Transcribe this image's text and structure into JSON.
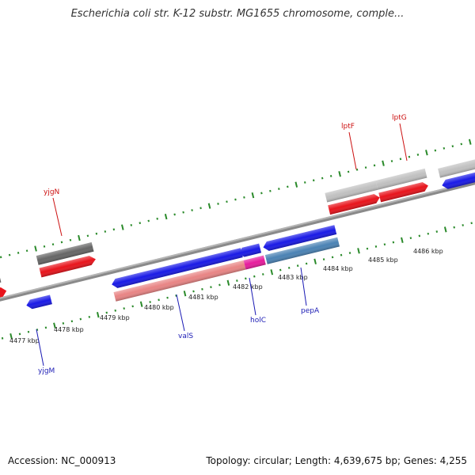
{
  "title": "Escherichia coli str. K-12 substr. MG1655 chromosome, comple...",
  "footer": {
    "accession": "Accession: NC_000913",
    "summary": "Topology: circular; Length: 4,639,675 bp; Genes: 4,255"
  },
  "colors": {
    "backbone": "#8a8a8a",
    "tick": "#2a8a2a",
    "cds_forward": "#e8141c",
    "cds_reverse": "#1a1ae6",
    "gene_forward": "#666666",
    "gene_forward_alt": "#c0c0c0",
    "gene_reverse_rrna": "#e88484",
    "gene_reverse_pink": "#e61c9c",
    "gene_reverse_steel": "#4a82b4",
    "label_forward": "#cc1111",
    "label_reverse": "#1a1ab4"
  },
  "ticks": [
    {
      "label": "4477 kbp"
    },
    {
      "label": "4478 kbp"
    },
    {
      "label": "4479 kbp"
    },
    {
      "label": "4480 kbp"
    },
    {
      "label": "4481 kbp"
    },
    {
      "label": "4482 kbp"
    },
    {
      "label": "4483 kbp"
    },
    {
      "label": "4484 kbp"
    },
    {
      "label": "4485 kbp"
    },
    {
      "label": "4486 kbp"
    }
  ],
  "labels": [
    {
      "text": "yjgN",
      "strand": "forward"
    },
    {
      "text": "lptF",
      "strand": "forward"
    },
    {
      "text": "lptG",
      "strand": "forward"
    },
    {
      "text": "yjgM",
      "strand": "reverse"
    },
    {
      "text": "valS",
      "strand": "reverse"
    },
    {
      "text": "holC",
      "strand": "reverse"
    },
    {
      "text": "pepA",
      "strand": "reverse"
    }
  ]
}
